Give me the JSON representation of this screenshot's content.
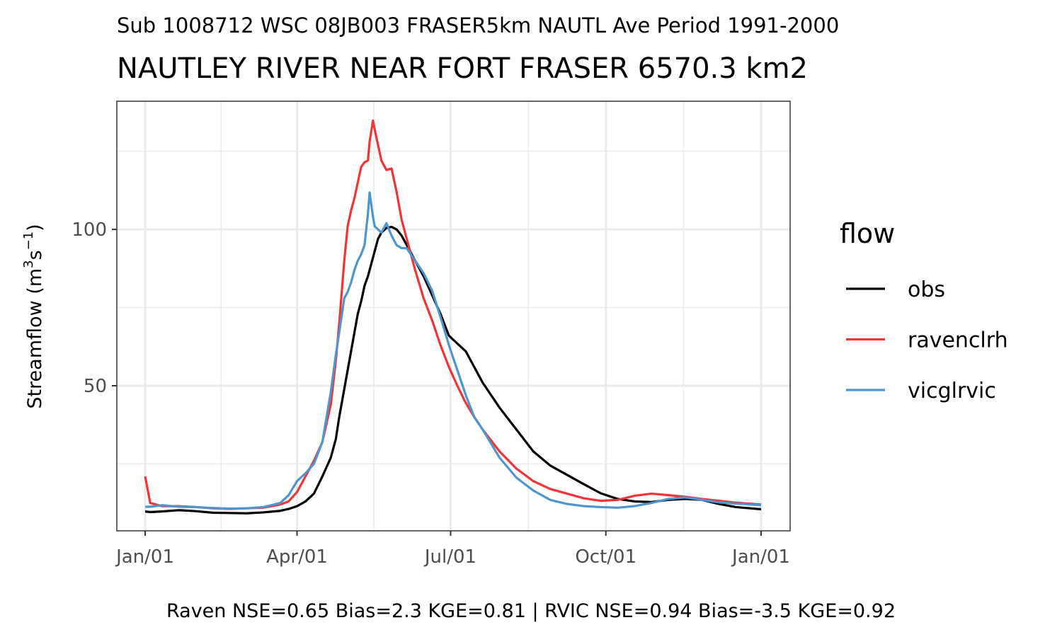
{
  "chart_data": {
    "type": "line",
    "subtitle": "Sub 1008712 WSC 08JB003 FRASER5km NAUTL Ave Period 1991-2000",
    "title": "NAUTLEY RIVER NEAR FORT FRASER 6570.3 km2",
    "y_label": [
      "Streamflow (m",
      "3",
      "s",
      "−1",
      ")"
    ],
    "caption": "Raven NSE=0.65 Bias=2.3 KGE=0.81 | RVIC NSE=0.94 Bias=-3.5 KGE=0.92",
    "legend_title": "flow",
    "legend_position": "right",
    "grid": true,
    "xlim": [
      -16.8,
      382.2
    ],
    "xticks": [
      {
        "value": 0,
        "label": "Jan/01"
      },
      {
        "value": 90,
        "label": "Apr/01"
      },
      {
        "value": 181,
        "label": "Jul/01"
      },
      {
        "value": 273,
        "label": "Oct/01"
      },
      {
        "value": 365,
        "label": "Jan/01"
      }
    ],
    "x_minor_grid": [
      45,
      135.5,
      227,
      319
    ],
    "ylim": [
      3.6,
      141
    ],
    "yticks": [
      50,
      100
    ],
    "y_minor_grid": [
      25,
      75,
      125
    ],
    "x": [
      0,
      3,
      10,
      20,
      30,
      40,
      50,
      60,
      70,
      80,
      85,
      90,
      95,
      100,
      105,
      110,
      113,
      115,
      118,
      120,
      122,
      124,
      126,
      128,
      130,
      132,
      133,
      135,
      136,
      138,
      140,
      143,
      146,
      149,
      152,
      155,
      160,
      165,
      170,
      175,
      180,
      185,
      190,
      195,
      200,
      210,
      220,
      230,
      240,
      250,
      260,
      270,
      280,
      290,
      300,
      310,
      320,
      330,
      340,
      350,
      365
    ],
    "series": [
      {
        "name": "obs",
        "color": "#000000",
        "values": [
          9.8,
          9.6,
          9.8,
          10.2,
          9.9,
          9.4,
          9.3,
          9.2,
          9.5,
          10,
          10.6,
          11.5,
          13,
          15.5,
          21,
          27,
          33,
          40,
          49,
          55,
          61,
          67,
          73,
          77,
          82,
          85,
          87,
          91,
          93,
          97,
          99,
          100.5,
          100.8,
          100,
          98,
          95,
          90,
          85,
          79,
          73,
          66,
          63.5,
          61,
          56,
          51,
          43,
          36,
          29,
          24.5,
          21.5,
          18.5,
          15.6,
          13.8,
          13,
          12.8,
          13.5,
          13.8,
          13.5,
          12.2,
          11.2,
          10.5
        ]
      },
      {
        "name": "ravenclrh",
        "color": "#f23338",
        "values": [
          21,
          12.5,
          11.5,
          11.5,
          11.2,
          10.8,
          10.6,
          10.8,
          11,
          12,
          13,
          16,
          21,
          26,
          32,
          44,
          58,
          70,
          90,
          101,
          106,
          110,
          115,
          120,
          121.5,
          122,
          128,
          134.8,
          132,
          127,
          122,
          119,
          119.5,
          112,
          103,
          97,
          87,
          78,
          71,
          63,
          56,
          50,
          44.5,
          40,
          36,
          29,
          23.5,
          19.5,
          17,
          15.5,
          14,
          13.2,
          13.5,
          14.8,
          15.5,
          15,
          14.5,
          13.8,
          13.2,
          12.6,
          12
        ]
      },
      {
        "name": "vicglrvic",
        "color": "#4e95d0",
        "values": [
          11.3,
          11.3,
          11.8,
          11.3,
          11.2,
          10.9,
          10.7,
          10.8,
          11.2,
          12.5,
          15,
          19.5,
          22,
          25,
          32,
          48,
          60,
          67,
          78,
          80,
          83,
          87,
          90,
          92,
          95,
          105,
          111.8,
          104,
          101,
          100,
          99,
          102,
          98,
          95,
          94,
          94,
          90,
          86,
          80.5,
          72,
          63,
          55,
          47,
          40,
          36,
          27,
          20.6,
          16.5,
          13.5,
          12.2,
          11.5,
          11.2,
          11,
          11.5,
          12.5,
          13.8,
          14.3,
          13.5,
          12.7,
          12.3,
          11.8
        ]
      }
    ]
  }
}
